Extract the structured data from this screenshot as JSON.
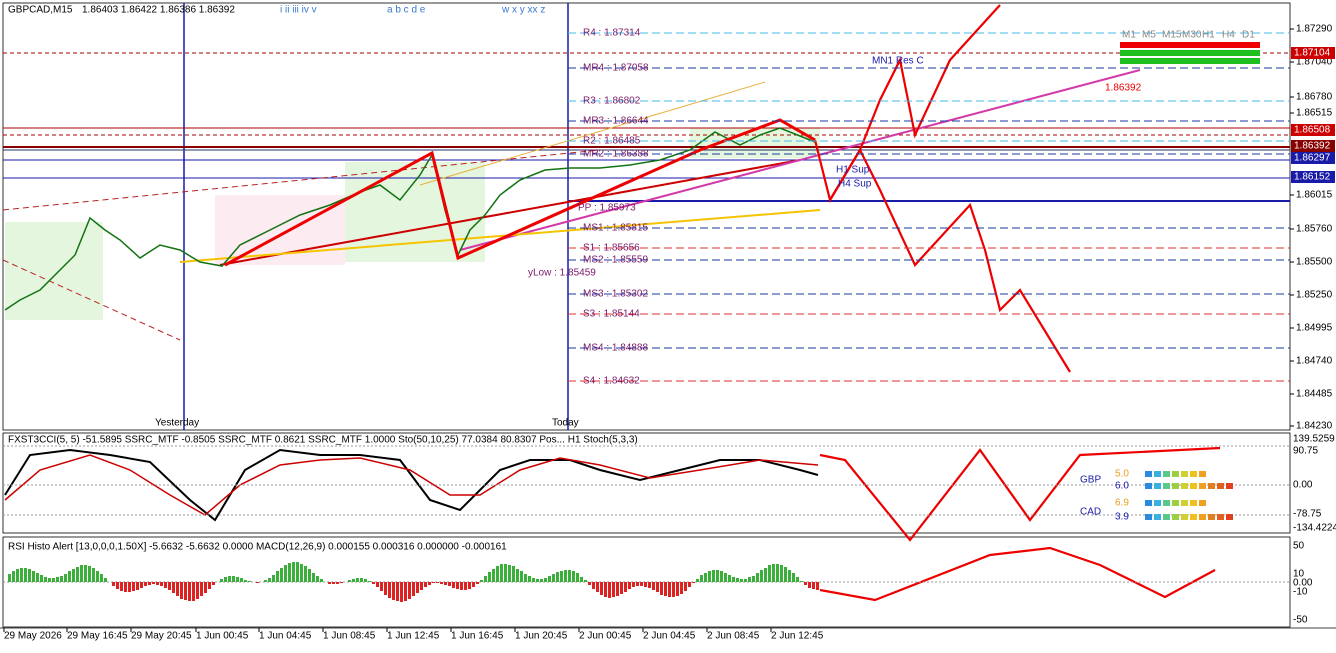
{
  "header": {
    "symbol": "GBPCAD,M15",
    "ohlc": "1.86403 1.86422 1.86386 1.86392"
  },
  "wave_labels": [
    "i ii iii iv v",
    "a b c d e",
    "w x y xx z"
  ],
  "session_labels": [
    "Yesterday",
    "Today"
  ],
  "pivots": [
    "R4 : 1.87314",
    "MR4 : 1.87058",
    "R3 : 1.86802",
    "MR3 : 1.86644",
    "R2 : 1.86485",
    "MR2 : 1.86388",
    "PP : 1.85973",
    "MS1 : 1.85815",
    "S1 : 1.85656",
    "MS2 : 1.85559",
    "MS3 : 1.85302",
    "S3 : 1.85144",
    "MS4 : 1.84888",
    "S4 : 1.84632"
  ],
  "level_labels": [
    "MN1 Res C",
    "H4 Sup",
    "H1 Sup",
    "yLow : 1.85459"
  ],
  "price_axis": [
    "1.87290",
    "1.87040",
    "1.86780",
    "1.86515",
    "1.86015",
    "1.85760",
    "1.85500",
    "1.85250",
    "1.84995",
    "1.84740",
    "1.84485",
    "1.84230"
  ],
  "price_tags": [
    "1.87104",
    "1.86508",
    "1.86392",
    "1.86297",
    "1.86152"
  ],
  "current_price": "1.86392",
  "mtf_panel": [
    "M1",
    "M5",
    "M15",
    "M30",
    "H1",
    "H4",
    "D1"
  ],
  "strength": [
    {
      "currency": "GBP",
      "values": [
        "5.0",
        "6.0"
      ]
    },
    {
      "currency": "CAD",
      "values": [
        "6.9",
        "3.9"
      ]
    }
  ],
  "oscillator": {
    "header": "FXST3CCI(5, 5) -51.5895  SSRC_MTF -0.8505  SSRC_MTF 0.8621  SSRC_MTF 1.0000  Sto(50,10,25) 77.0384 80.8307  Pos... H1 Stoch(5,3,3)",
    "axis": [
      "139.5259",
      "90.75",
      "0.00",
      "-78.75",
      "-134.4224"
    ]
  },
  "macd": {
    "header": "RSI Histo Alert [13,0,0,0,1.50X] -5.6632 -5.6632 0.0000  MACD(12,26,9) 0.000155 0.000316 0.000000 -0.000161",
    "axis": [
      "50",
      "10",
      "0.00",
      "-10",
      "-50"
    ]
  },
  "time_axis": [
    "29 May 2026",
    "29 May 16:45",
    "29 May 20:45",
    "1 Jun 00:45",
    "1 Jun 04:45",
    "1 Jun 08:45",
    "1 Jun 12:45",
    "1 Jun 16:45",
    "1 Jun 20:45",
    "2 Jun 00:45",
    "2 Jun 04:45",
    "2 Jun 08:45",
    "2 Jun 12:45"
  ]
}
